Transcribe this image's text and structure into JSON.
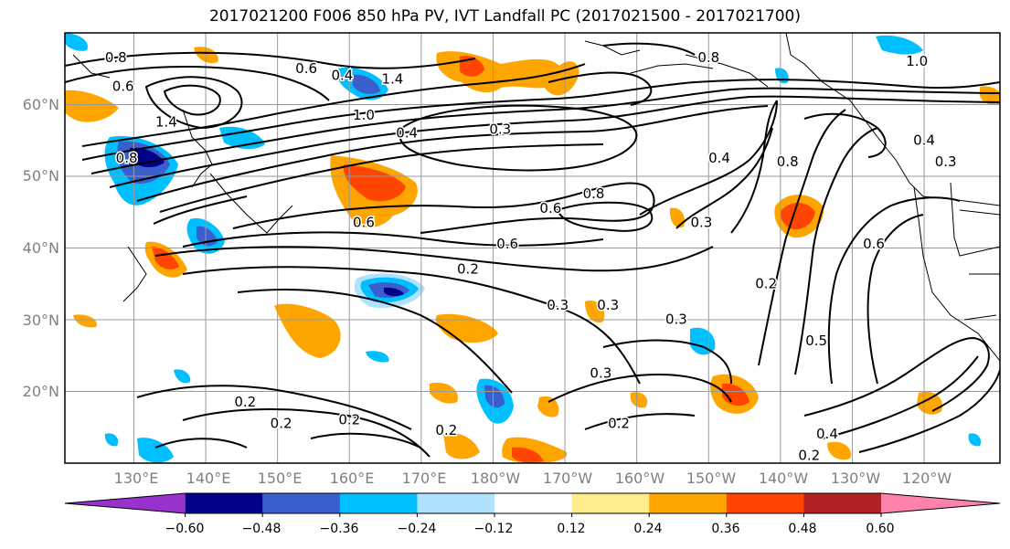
{
  "title": "2017021200 F006 850 hPa PV, IVT Landfall PC (2017021500 - 2017021700)",
  "lat_labels": [
    "60°N",
    "50°N",
    "40°N",
    "30°N",
    "20°N"
  ],
  "lon_labels": [
    "130°E",
    "140°E",
    "150°E",
    "160°E",
    "170°E",
    "180°W",
    "170°W",
    "160°W",
    "150°W",
    "140°W",
    "130°W",
    "120°W"
  ],
  "colorbar": {
    "colors": [
      "#9932cc",
      "#00008b",
      "#3a5fcd",
      "#00bfff",
      "#b0e2ff",
      "#ffffff",
      "#ffec8b",
      "#ffa500",
      "#ff4500",
      "#b22222",
      "#ff82ab"
    ],
    "ticks": [
      "−0.60",
      "−0.48",
      "−0.36",
      "−0.24",
      "−0.12",
      "0.12",
      "0.24",
      "0.36",
      "0.48",
      "0.60"
    ]
  },
  "contour_labels": [
    {
      "text": "0.8",
      "lon": 127.5,
      "lat": 66.5
    },
    {
      "text": "0.6",
      "lon": 128.5,
      "lat": 62.5
    },
    {
      "text": "1.4",
      "lon": 134.5,
      "lat": 57.5
    },
    {
      "text": "0.6",
      "lon": 154,
      "lat": 65
    },
    {
      "text": "0.4",
      "lon": 159,
      "lat": 64
    },
    {
      "text": "1.4",
      "lon": 166,
      "lat": 63.5
    },
    {
      "text": "1.0",
      "lon": 162,
      "lat": 58.5
    },
    {
      "text": "0.4",
      "lon": 168,
      "lat": 56
    },
    {
      "text": "0.3",
      "lon": 181,
      "lat": 56.5
    },
    {
      "text": "0.8",
      "lon": 129,
      "lat": 52.5
    },
    {
      "text": "0.6",
      "lon": 162,
      "lat": 43.5
    },
    {
      "text": "0.6",
      "lon": 188,
      "lat": 45.5
    },
    {
      "text": "0.8",
      "lon": 194,
      "lat": 47.5
    },
    {
      "text": "0.6",
      "lon": 182,
      "lat": 40.5
    },
    {
      "text": "0.2",
      "lon": 176.5,
      "lat": 37
    },
    {
      "text": "0.3",
      "lon": 189,
      "lat": 32
    },
    {
      "text": "0.3",
      "lon": 209,
      "lat": 43.5
    },
    {
      "text": "0.3",
      "lon": 196,
      "lat": 32
    },
    {
      "text": "0.3",
      "lon": 205.5,
      "lat": 30
    },
    {
      "text": "0.3",
      "lon": 195,
      "lat": 22.5
    },
    {
      "text": "0.2",
      "lon": 145.5,
      "lat": 18.5
    },
    {
      "text": "0.2",
      "lon": 150.5,
      "lat": 15.5
    },
    {
      "text": "0.2",
      "lon": 160,
      "lat": 16
    },
    {
      "text": "0.2",
      "lon": 173.5,
      "lat": 14.5
    },
    {
      "text": "0.2",
      "lon": 197.5,
      "lat": 15.5
    },
    {
      "text": "0.4",
      "lon": 226.5,
      "lat": 14
    },
    {
      "text": "0.2",
      "lon": 224,
      "lat": 11
    },
    {
      "text": "0.5",
      "lon": 225,
      "lat": 27
    },
    {
      "text": "0.6",
      "lon": 233,
      "lat": 40.5
    },
    {
      "text": "0.2",
      "lon": 218,
      "lat": 35
    },
    {
      "text": "0.8",
      "lon": 221,
      "lat": 52
    },
    {
      "text": "0.4",
      "lon": 211.5,
      "lat": 52.5
    },
    {
      "text": "0.8",
      "lon": 210,
      "lat": 66.5
    },
    {
      "text": "1.0",
      "lon": 239,
      "lat": 66
    },
    {
      "text": "0.4",
      "lon": 240,
      "lat": 55
    },
    {
      "text": "0.3",
      "lon": 243,
      "lat": 52
    }
  ]
}
